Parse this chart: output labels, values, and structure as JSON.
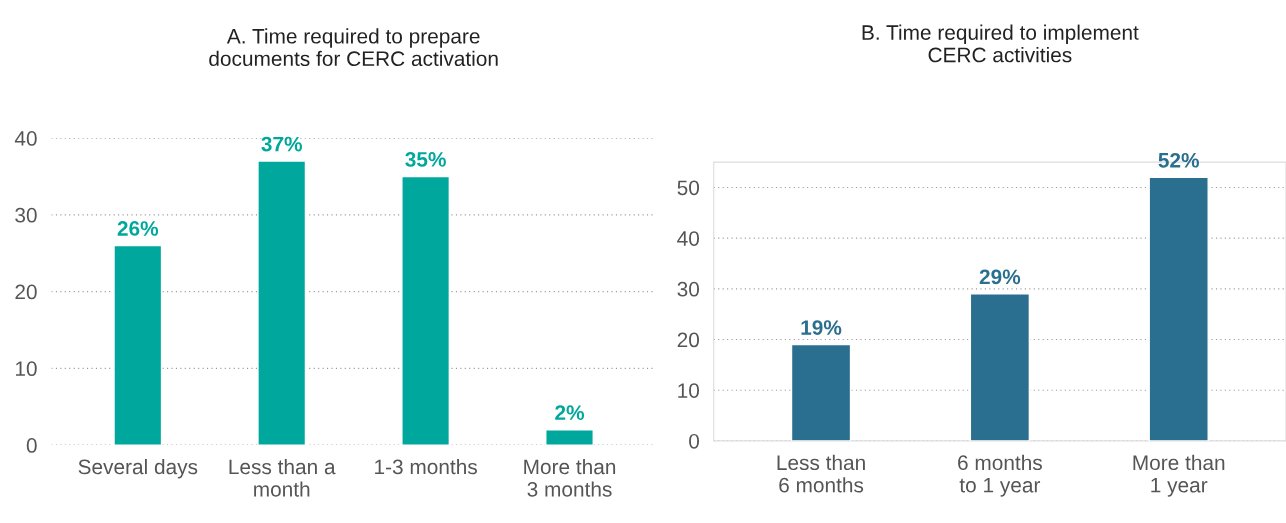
{
  "chart_data": [
    {
      "type": "bar",
      "title": "A. Time required to prepare\ndocuments for CERC activation",
      "categories": [
        "Several days",
        "Less than a\nmonth",
        "1-3 months",
        "More than\n3 months"
      ],
      "values": [
        26,
        37,
        35,
        2
      ],
      "value_labels": [
        "26%",
        "37%",
        "35%",
        "2%"
      ],
      "color": "#00a79d",
      "ylim": [
        0,
        40
      ],
      "yticks": [
        0,
        10,
        20,
        30,
        40
      ],
      "grid": "y"
    },
    {
      "type": "bar",
      "title": "B. Time required to implement\nCERC activities",
      "categories": [
        "Less than\n6 months",
        "6 months\nto 1 year",
        "More than\n1 year"
      ],
      "values": [
        19,
        29,
        52
      ],
      "value_labels": [
        "19%",
        "29%",
        "52%"
      ],
      "color": "#2a6f8f",
      "ylim": [
        0,
        55
      ],
      "yticks": [
        0,
        10,
        20,
        30,
        40,
        50
      ],
      "grid": "y"
    }
  ]
}
